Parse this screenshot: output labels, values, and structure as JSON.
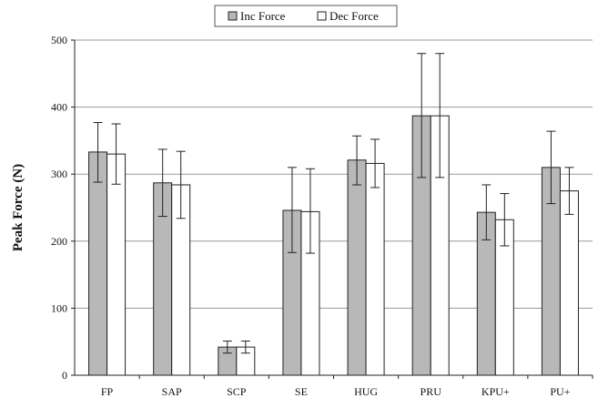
{
  "chart_data": {
    "type": "bar",
    "categories": [
      "FP",
      "SAP",
      "SCP",
      "SE",
      "HUG",
      "PRU",
      "KPU+",
      "PU+"
    ],
    "series": [
      {
        "name": "Inc Force",
        "color": "#b8b8b8",
        "values": [
          333,
          287,
          42,
          246,
          321,
          387,
          243,
          310
        ],
        "error_low": [
          288,
          237,
          33,
          183,
          284,
          295,
          202,
          256
        ],
        "error_high": [
          377,
          337,
          51,
          310,
          357,
          480,
          284,
          364
        ]
      },
      {
        "name": "Dec Force",
        "color": "#ffffff",
        "values": [
          330,
          284,
          42,
          244,
          316,
          387,
          232,
          275
        ],
        "error_low": [
          285,
          234,
          33,
          182,
          280,
          295,
          193,
          240
        ],
        "error_high": [
          375,
          334,
          51,
          308,
          352,
          480,
          271,
          310
        ]
      }
    ],
    "xlabel": "",
    "ylabel": "Peak Force (N)",
    "ylim": [
      0,
      500
    ],
    "yticks": [
      "0",
      "100",
      "200",
      "300",
      "400",
      "500"
    ],
    "grid": true,
    "legend_position": "top-center"
  }
}
